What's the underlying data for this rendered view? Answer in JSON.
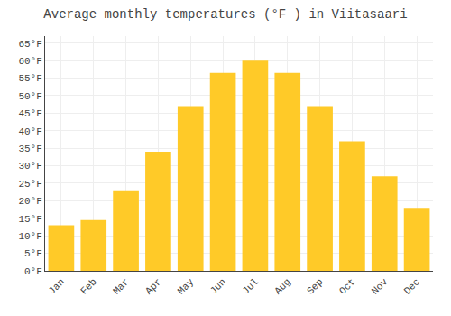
{
  "chart_data": {
    "type": "bar",
    "title": "Average monthly temperatures (°F ) in Viitasaari",
    "categories": [
      "Jan",
      "Feb",
      "Mar",
      "Apr",
      "May",
      "Jun",
      "Jul",
      "Aug",
      "Sep",
      "Oct",
      "Nov",
      "Dec"
    ],
    "values": [
      13,
      14.5,
      23,
      34,
      47,
      56.5,
      60,
      56.5,
      47,
      37,
      27,
      18
    ],
    "color": "#FFCA28",
    "ylim": [
      0,
      67
    ],
    "yticks": [
      {
        "value": 0,
        "label": "0°F"
      },
      {
        "value": 5,
        "label": "5°F"
      },
      {
        "value": 10,
        "label": "10°F"
      },
      {
        "value": 15,
        "label": "15°F"
      },
      {
        "value": 20,
        "label": "20°F"
      },
      {
        "value": 25,
        "label": "25°F"
      },
      {
        "value": 30,
        "label": "30°F"
      },
      {
        "value": 35,
        "label": "35°F"
      },
      {
        "value": 40,
        "label": "40°F"
      },
      {
        "value": 45,
        "label": "45°F"
      },
      {
        "value": 50,
        "label": "50°F"
      },
      {
        "value": 55,
        "label": "55°F"
      },
      {
        "value": 60,
        "label": "60°F"
      },
      {
        "value": 65,
        "label": "65°F"
      }
    ],
    "grid": true
  }
}
